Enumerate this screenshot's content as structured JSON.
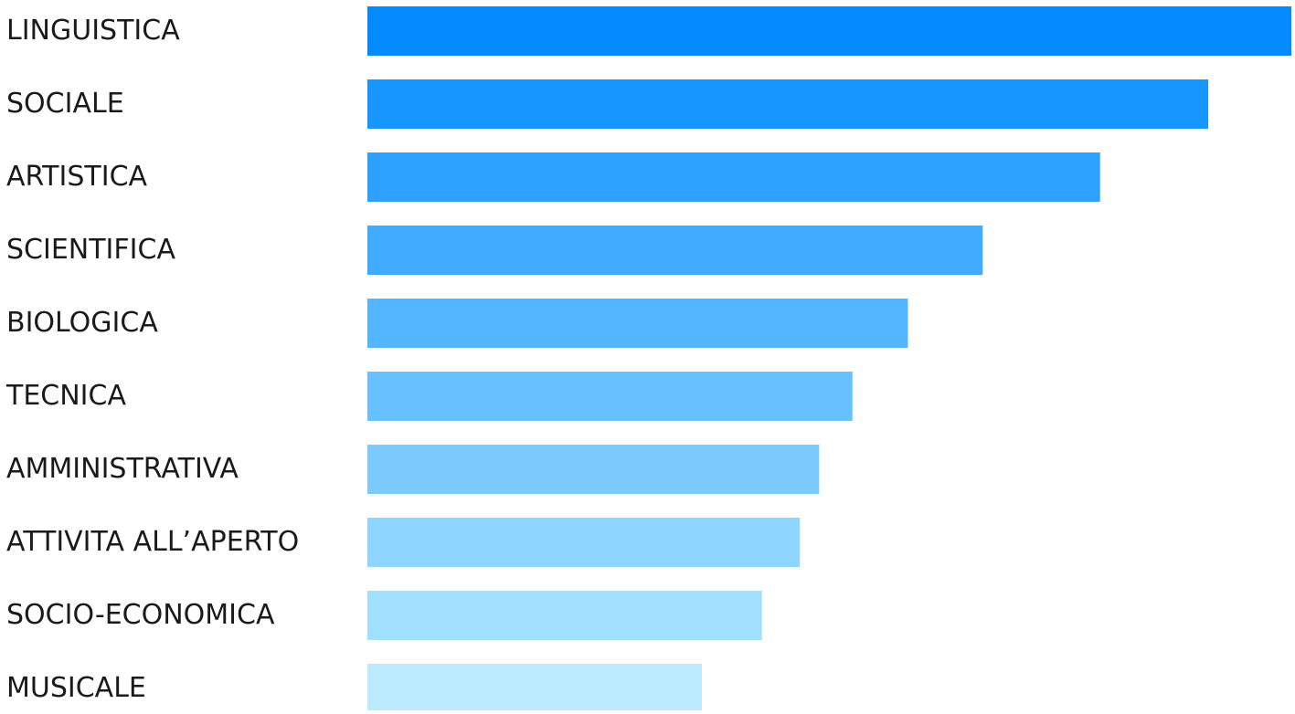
{
  "chart_data": {
    "type": "bar",
    "orientation": "horizontal",
    "categories": [
      "LINGUISTICA",
      "SOCIALE",
      "ARTISTICA",
      "SCIENTIFICA",
      "BIOLOGICA",
      "TECNICA",
      "AMMINISTRATIVA",
      "ATTIVITA ALL’APERTO",
      "SOCIO-ECONOMICA",
      "MUSICALE"
    ],
    "values": [
      100,
      91,
      79.3,
      66.6,
      58.5,
      52.5,
      48.9,
      46.8,
      42.7,
      36.2
    ],
    "colors": [
      "#038bff",
      "#1896ff",
      "#2ca1ff",
      "#40abff",
      "#54b6ff",
      "#67c1ff",
      "#7bcbff",
      "#8ed5ff",
      "#a3dfff",
      "#bceaff"
    ],
    "title": "",
    "xlabel": "",
    "ylabel": "",
    "xlim": [
      0,
      100
    ],
    "grid": false,
    "legend": "none"
  }
}
